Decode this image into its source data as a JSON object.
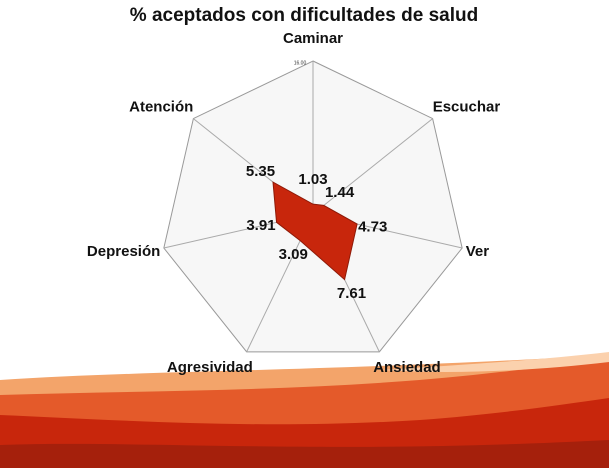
{
  "chart_data": {
    "type": "radar",
    "title": "% aceptados con dificultades de salud",
    "categories": [
      "Caminar",
      "Escuchar",
      "Ver",
      "Ansiedad",
      "Agresividad",
      "Depresión",
      "Atención"
    ],
    "values": [
      1.03,
      1.44,
      4.73,
      7.61,
      3.09,
      3.91,
      5.35
    ],
    "color": "#c8260c",
    "ylim": [
      0,
      16
    ],
    "yticks": [
      {
        "value": 16,
        "label": "16.00"
      }
    ]
  }
}
